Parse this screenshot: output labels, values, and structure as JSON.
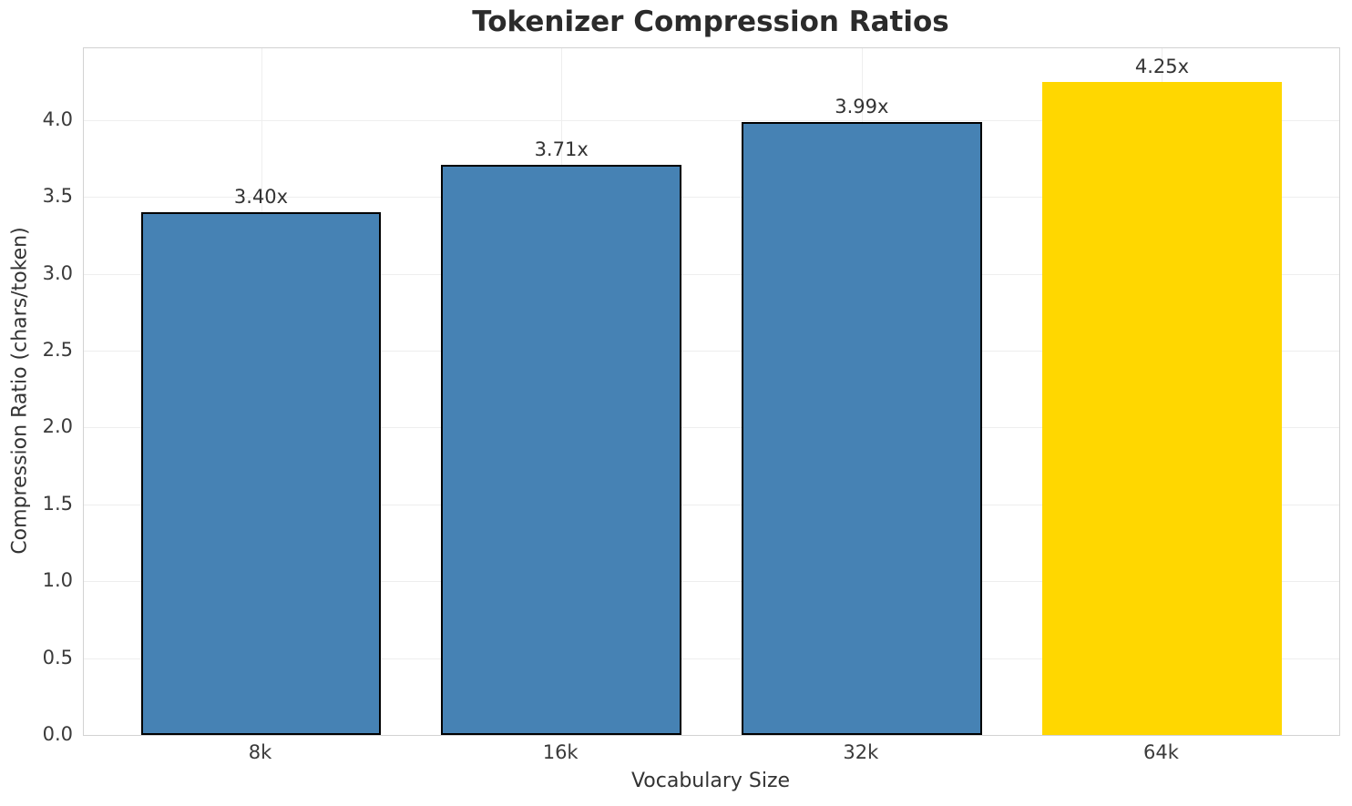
{
  "figure": {
    "title": "Tokenizer Compression Ratios",
    "xlabel": "Vocabulary Size",
    "ylabel": "Compression Ratio (chars/token)"
  },
  "chart_data": {
    "type": "bar",
    "title": "Tokenizer Compression Ratios",
    "xlabel": "Vocabulary Size",
    "ylabel": "Compression Ratio (chars/token)",
    "categories": [
      "8k",
      "16k",
      "32k",
      "64k"
    ],
    "values": [
      3.4,
      3.71,
      3.99,
      4.25
    ],
    "bar_value_labels": [
      "3.40x",
      "3.71x",
      "3.99x",
      "4.25x"
    ],
    "bar_colors": [
      "#4682B4",
      "#4682B4",
      "#4682B4",
      "#FFD700"
    ],
    "bar_edge_colors": [
      "#000000",
      "#000000",
      "#000000",
      "none"
    ],
    "ytick_labels": [
      "0.0",
      "0.5",
      "1.0",
      "1.5",
      "2.0",
      "2.5",
      "3.0",
      "3.5",
      "4.0"
    ],
    "yticks": [
      0.0,
      0.5,
      1.0,
      1.5,
      2.0,
      2.5,
      3.0,
      3.5,
      4.0
    ],
    "ylim": [
      0,
      4.467
    ],
    "xlim": [
      -0.59,
      3.59
    ],
    "bar_width": 0.8,
    "grid": true,
    "legend_position": "none"
  },
  "colors": {
    "default_bar": "#4682B4",
    "highlight_bar": "#FFD700",
    "bar_edge": "#000000",
    "grid": "#eeeeee",
    "spine": "#d2d2d2",
    "text": "#333333"
  }
}
